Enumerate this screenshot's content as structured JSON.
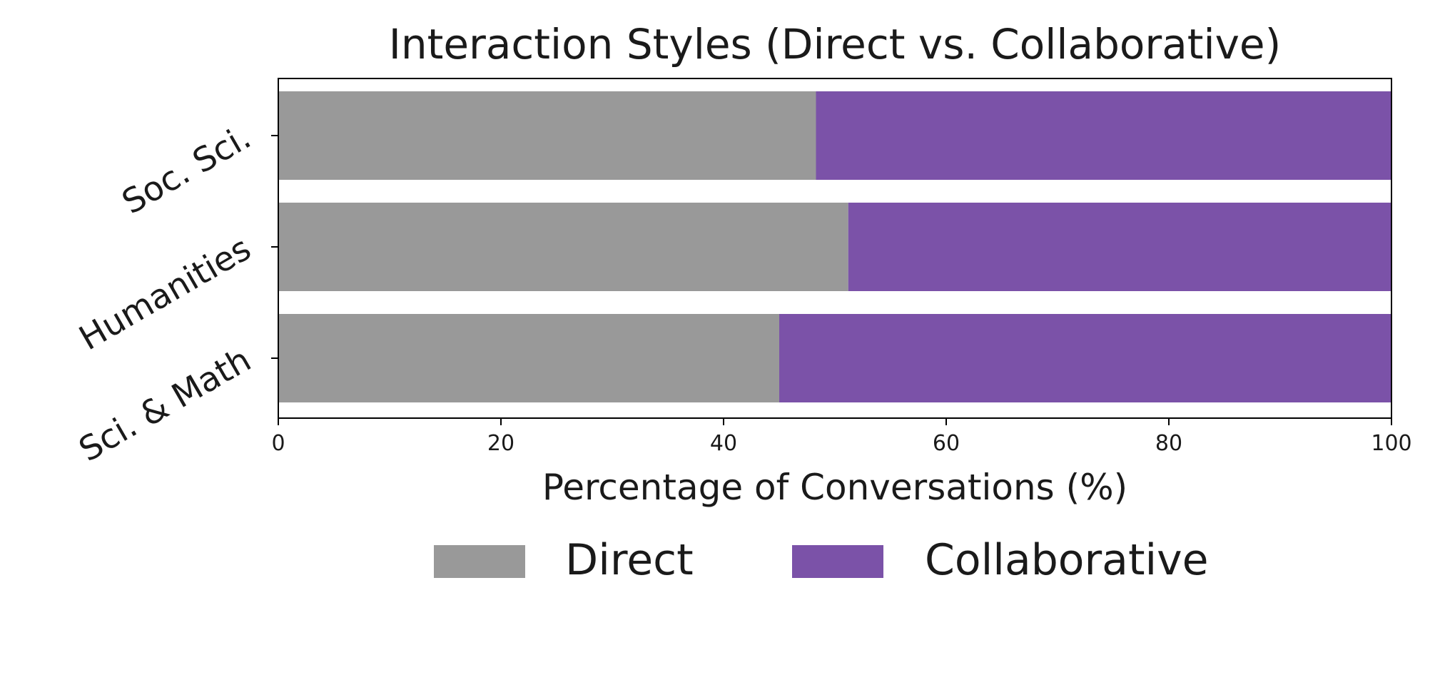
{
  "chart_data": {
    "type": "bar",
    "orientation": "horizontal",
    "stacked": true,
    "title": "Interaction Styles (Direct vs. Collaborative)",
    "xlabel": "Percentage of Conversations (%)",
    "ylabel": "",
    "xlim": [
      0,
      100
    ],
    "xticks": [
      0,
      20,
      40,
      60,
      80,
      100
    ],
    "categories": [
      "Sci. & Math",
      "Humanities",
      "Soc. Sci."
    ],
    "series": [
      {
        "name": "Direct",
        "color": "#999999",
        "values": [
          45.0,
          51.2,
          48.3
        ]
      },
      {
        "name": "Collaborative",
        "color": "#7b52a8",
        "values": [
          55.0,
          48.8,
          51.7
        ]
      }
    ],
    "grid": false,
    "legend_position": "bottom-center"
  }
}
